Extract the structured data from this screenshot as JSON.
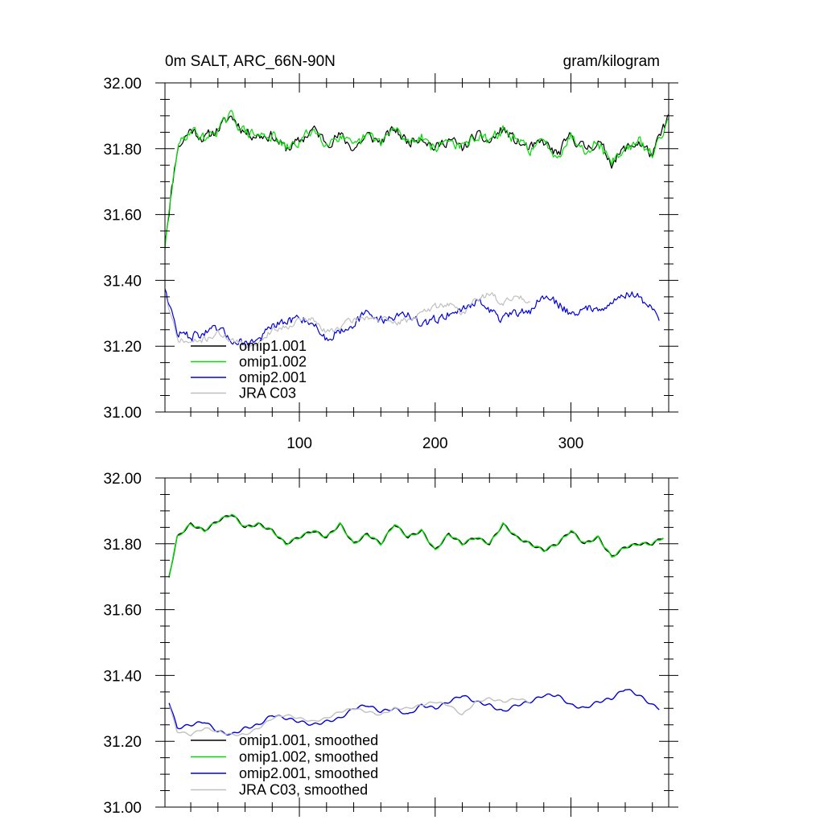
{
  "chart_data": [
    {
      "type": "line",
      "title": "0m SALT, ARC_66N-90N",
      "units": "gram/kilogram",
      "xlim": [
        1,
        372
      ],
      "ylim": [
        31.0,
        32.0
      ],
      "y_ticks": [
        "32.00",
        "31.80",
        "31.60",
        "31.40",
        "31.20",
        "31.00"
      ],
      "y_tick_values": [
        32.0,
        31.8,
        31.6,
        31.4,
        31.2,
        31.0
      ],
      "x_ticks": [
        "100",
        "200",
        "300"
      ],
      "x_tick_values": [
        100,
        200,
        300
      ],
      "series": [
        {
          "name": "omip1.001",
          "color": "#000000",
          "x": [
            1,
            10,
            20,
            30,
            40,
            50,
            60,
            70,
            80,
            90,
            100,
            110,
            120,
            130,
            140,
            150,
            160,
            170,
            180,
            190,
            200,
            210,
            220,
            230,
            240,
            250,
            260,
            270,
            280,
            290,
            300,
            310,
            320,
            330,
            340,
            350,
            360,
            372
          ],
          "values": [
            31.52,
            31.8,
            31.86,
            31.83,
            31.86,
            31.9,
            31.85,
            31.84,
            31.84,
            31.8,
            31.82,
            31.86,
            31.82,
            31.84,
            31.8,
            31.84,
            31.82,
            31.86,
            31.82,
            31.84,
            31.8,
            31.83,
            31.8,
            31.84,
            31.82,
            31.86,
            31.82,
            31.8,
            31.82,
            31.78,
            31.84,
            31.8,
            31.82,
            31.76,
            31.8,
            31.82,
            31.78,
            31.9
          ]
        },
        {
          "name": "omip1.002",
          "color": "#00dd00",
          "x": [
            1,
            10,
            20,
            30,
            40,
            50,
            60,
            70,
            80,
            90,
            100,
            110,
            120,
            130,
            140,
            150,
            160,
            170,
            180,
            190,
            200,
            210,
            220,
            230,
            240,
            250,
            260,
            270,
            280,
            290,
            300,
            310,
            320,
            330,
            340,
            350,
            360,
            372
          ],
          "values": [
            31.5,
            31.8,
            31.86,
            31.83,
            31.86,
            31.9,
            31.85,
            31.84,
            31.84,
            31.8,
            31.82,
            31.86,
            31.82,
            31.84,
            31.8,
            31.84,
            31.82,
            31.86,
            31.82,
            31.84,
            31.8,
            31.83,
            31.8,
            31.84,
            31.82,
            31.86,
            31.82,
            31.8,
            31.82,
            31.78,
            31.84,
            31.8,
            31.82,
            31.76,
            31.8,
            31.82,
            31.78,
            31.9
          ]
        },
        {
          "name": "omip2.001",
          "color": "#0000dd",
          "x": [
            1,
            10,
            20,
            30,
            40,
            50,
            60,
            70,
            80,
            90,
            100,
            110,
            120,
            130,
            140,
            150,
            160,
            170,
            180,
            190,
            200,
            210,
            220,
            230,
            240,
            250,
            260,
            270,
            280,
            290,
            300,
            310,
            320,
            330,
            340,
            350,
            360,
            365
          ],
          "values": [
            31.38,
            31.24,
            31.23,
            31.24,
            31.25,
            31.22,
            31.21,
            31.22,
            31.26,
            31.27,
            31.29,
            31.27,
            31.22,
            31.25,
            31.27,
            31.3,
            31.28,
            31.29,
            31.3,
            31.26,
            31.28,
            31.3,
            31.31,
            31.34,
            31.31,
            31.28,
            31.3,
            31.31,
            31.35,
            31.33,
            31.3,
            31.31,
            31.32,
            31.33,
            31.36,
            31.35,
            31.31,
            31.28
          ]
        },
        {
          "name": "JRA C03",
          "color": "#c0c0c0",
          "x": [
            1,
            10,
            20,
            30,
            40,
            50,
            60,
            70,
            80,
            90,
            100,
            110,
            120,
            130,
            140,
            150,
            160,
            170,
            180,
            190,
            200,
            210,
            220,
            230,
            240,
            250,
            260,
            270
          ],
          "values": [
            31.36,
            31.22,
            31.21,
            31.22,
            31.24,
            31.22,
            31.2,
            31.21,
            31.25,
            31.26,
            31.28,
            31.28,
            31.24,
            31.26,
            31.28,
            31.29,
            31.28,
            31.27,
            31.28,
            31.3,
            31.32,
            31.33,
            31.3,
            31.34,
            31.36,
            31.33,
            31.35,
            31.34
          ]
        }
      ],
      "legend": {
        "position": "bottom-left",
        "entries": [
          "omip1.001",
          "omip1.002",
          "omip2.001",
          "JRA C03"
        ]
      },
      "noise": [
        0.026,
        0.026,
        0.022,
        0.016
      ]
    },
    {
      "type": "line",
      "title": "",
      "units": "",
      "xlim": [
        1,
        372
      ],
      "ylim": [
        31.0,
        32.0
      ],
      "y_ticks": [
        "32.00",
        "31.80",
        "31.60",
        "31.40",
        "31.20",
        "31.00"
      ],
      "y_tick_values": [
        32.0,
        31.8,
        31.6,
        31.4,
        31.2,
        31.0
      ],
      "x_ticks": [],
      "x_tick_values": [
        100,
        200,
        300
      ],
      "series": [
        {
          "name": "omip1.001, smoothed",
          "color": "#000000",
          "x": [
            4,
            10,
            20,
            30,
            40,
            50,
            60,
            70,
            80,
            90,
            100,
            110,
            120,
            130,
            140,
            150,
            160,
            170,
            180,
            190,
            200,
            210,
            220,
            230,
            240,
            250,
            260,
            270,
            280,
            290,
            300,
            310,
            320,
            330,
            340,
            350,
            360,
            368
          ],
          "values": [
            31.7,
            31.82,
            31.86,
            31.84,
            31.87,
            31.89,
            31.85,
            31.86,
            31.84,
            31.8,
            31.82,
            31.84,
            31.82,
            31.86,
            31.8,
            31.83,
            31.8,
            31.86,
            31.82,
            31.84,
            31.78,
            31.83,
            31.8,
            31.82,
            31.8,
            31.86,
            31.82,
            31.8,
            31.78,
            31.8,
            31.84,
            31.8,
            31.82,
            31.76,
            31.79,
            31.8,
            31.8,
            31.82
          ]
        },
        {
          "name": "omip1.002, smoothed",
          "color": "#00dd00",
          "x": [
            4,
            10,
            20,
            30,
            40,
            50,
            60,
            70,
            80,
            90,
            100,
            110,
            120,
            130,
            140,
            150,
            160,
            170,
            180,
            190,
            200,
            210,
            220,
            230,
            240,
            250,
            260,
            270,
            280,
            290,
            300,
            310,
            320,
            330,
            340,
            350,
            360,
            368
          ],
          "values": [
            31.7,
            31.82,
            31.86,
            31.84,
            31.87,
            31.89,
            31.85,
            31.86,
            31.84,
            31.8,
            31.82,
            31.84,
            31.82,
            31.86,
            31.8,
            31.83,
            31.8,
            31.86,
            31.82,
            31.84,
            31.78,
            31.83,
            31.8,
            31.82,
            31.8,
            31.86,
            31.82,
            31.8,
            31.78,
            31.8,
            31.84,
            31.8,
            31.82,
            31.76,
            31.79,
            31.8,
            31.8,
            31.82
          ]
        },
        {
          "name": "omip2.001, smoothed",
          "color": "#0000dd",
          "x": [
            4,
            10,
            20,
            30,
            40,
            50,
            60,
            70,
            80,
            90,
            100,
            110,
            120,
            130,
            140,
            150,
            160,
            170,
            180,
            190,
            200,
            210,
            220,
            230,
            240,
            250,
            260,
            270,
            280,
            290,
            300,
            310,
            320,
            330,
            340,
            350,
            360,
            365
          ],
          "values": [
            31.32,
            31.24,
            31.25,
            31.26,
            31.23,
            31.22,
            31.24,
            31.25,
            31.28,
            31.27,
            31.26,
            31.25,
            31.26,
            31.27,
            31.3,
            31.31,
            31.29,
            31.3,
            31.28,
            31.31,
            31.3,
            31.32,
            31.34,
            31.32,
            31.31,
            31.29,
            31.31,
            31.32,
            31.34,
            31.34,
            31.31,
            31.3,
            31.32,
            31.33,
            31.36,
            31.34,
            31.31,
            31.3
          ]
        },
        {
          "name": "JRA C03, smoothed",
          "color": "#c0c0c0",
          "x": [
            4,
            10,
            20,
            30,
            40,
            50,
            60,
            70,
            80,
            90,
            100,
            110,
            120,
            130,
            140,
            150,
            160,
            170,
            180,
            190,
            200,
            210,
            220,
            230,
            240,
            250,
            260,
            270
          ],
          "values": [
            31.31,
            31.23,
            31.22,
            31.24,
            31.23,
            31.22,
            31.22,
            31.24,
            31.27,
            31.28,
            31.27,
            31.26,
            31.27,
            31.29,
            31.3,
            31.29,
            31.28,
            31.3,
            31.3,
            31.31,
            31.32,
            31.31,
            31.28,
            31.32,
            31.33,
            31.32,
            31.33,
            31.32
          ]
        }
      ],
      "legend": {
        "position": "bottom-left",
        "entries": [
          "omip1.001, smoothed",
          "omip1.002, smoothed",
          "omip2.001, smoothed",
          "JRA C03, smoothed"
        ]
      },
      "noise": [
        0.004,
        0.004,
        0.004,
        0.003
      ]
    }
  ]
}
